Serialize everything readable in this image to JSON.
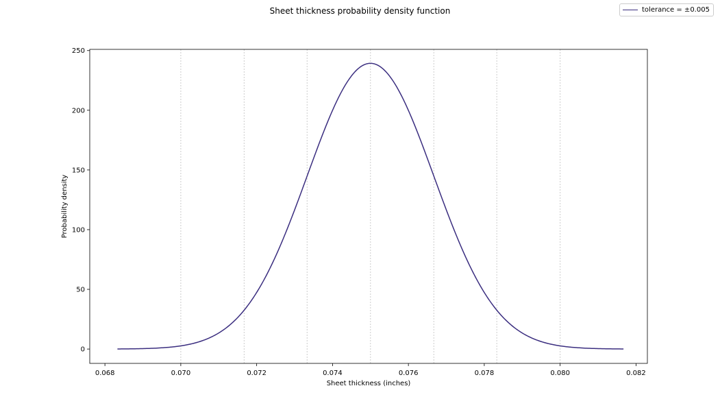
{
  "chart_data": {
    "type": "line",
    "title": "Sheet thickness probability density function",
    "xlabel": "Sheet thickness (inches)",
    "ylabel": "Probability density",
    "xlim": [
      0.0676,
      0.0823
    ],
    "ylim": [
      -12,
      251
    ],
    "xticks": [
      0.068,
      0.07,
      0.072,
      0.074,
      0.076,
      0.078,
      0.08,
      0.082
    ],
    "xtick_labels": [
      "0.068",
      "0.070",
      "0.072",
      "0.074",
      "0.076",
      "0.078",
      "0.080",
      "0.082"
    ],
    "yticks": [
      0,
      50,
      100,
      150,
      200,
      250
    ],
    "ytick_labels": [
      "0",
      "50",
      "100",
      "150",
      "200",
      "250"
    ],
    "vlines": [
      0.07,
      0.07167,
      0.07333,
      0.075,
      0.07667,
      0.07833,
      0.08
    ],
    "grid": false,
    "legend_position": "top-right",
    "series": [
      {
        "name": "tolerance = ±0.005",
        "color": "#3a2d7f",
        "distribution": "normal",
        "mean": 0.075,
        "std": 0.001667,
        "x_range": [
          0.06833,
          0.08167
        ]
      }
    ]
  }
}
